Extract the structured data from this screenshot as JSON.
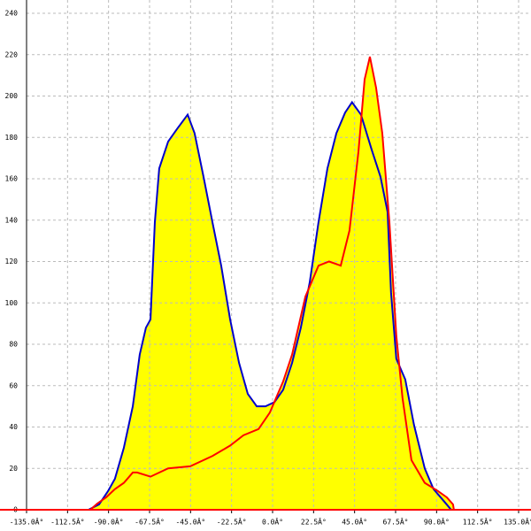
{
  "chart_data": {
    "type": "area",
    "xlim": [
      -135,
      135
    ],
    "ylim": [
      0,
      240
    ],
    "xticks": [
      {
        "value": -135,
        "label": "-135.0Â°"
      },
      {
        "value": -112.5,
        "label": "-112.5Â°"
      },
      {
        "value": -90,
        "label": "-90.0Â°"
      },
      {
        "value": -67.5,
        "label": "-67.5Â°"
      },
      {
        "value": -45,
        "label": "-45.0Â°"
      },
      {
        "value": -22.5,
        "label": "-22.5Â°"
      },
      {
        "value": 0,
        "label": "0.0Â°"
      },
      {
        "value": 22.5,
        "label": "22.5Â°"
      },
      {
        "value": 45,
        "label": "45.0Â°"
      },
      {
        "value": 67.5,
        "label": "67.5Â°"
      },
      {
        "value": 90,
        "label": "90.0Â°"
      },
      {
        "value": 112.5,
        "label": "112.5Â°"
      },
      {
        "value": 135,
        "label": "135.0Â°"
      }
    ],
    "yticks": [
      0,
      20,
      40,
      60,
      80,
      100,
      120,
      140,
      160,
      180,
      200,
      220,
      240
    ],
    "grid": true,
    "fill": "#ffff00",
    "baseline_color": "#ff0000",
    "series": [
      {
        "color": "#0000cc",
        "x": [
          -101,
          -95.2,
          -90.3,
          -86.5,
          -81.6,
          -76.7,
          -72.9,
          -69.5,
          -67,
          -64.6,
          -62.2,
          -57.3,
          -52.5,
          -46.6,
          -42.8,
          -37.9,
          -33,
          -28.2,
          -23.3,
          -18.4,
          -13.6,
          -8.7,
          -3.9,
          1,
          5.8,
          10.7,
          15.5,
          20.4,
          25.2,
          30.1,
          35,
          39.8,
          43.6,
          48.5,
          54.4,
          59.2,
          63.1,
          65,
          67.9,
          72.8,
          77.6,
          83.5,
          88.3,
          93.2,
          98
        ],
        "values": [
          0,
          2.6,
          9,
          15,
          30,
          50,
          75,
          88,
          92,
          139,
          165,
          178,
          184,
          191,
          182,
          161,
          139,
          118,
          92,
          71,
          56,
          50,
          50,
          52,
          58,
          71,
          88,
          110,
          139,
          165,
          182,
          192,
          197,
          191,
          174,
          161,
          144,
          105,
          73,
          63,
          41,
          20,
          10,
          5,
          0
        ]
      },
      {
        "color": "#ff0000",
        "x": [
          -100,
          -96.2,
          -91.3,
          -86.5,
          -81.6,
          -76.7,
          -74.3,
          -67,
          -57.3,
          -45.2,
          -33,
          -23.3,
          -16,
          -7.7,
          -1.5,
          5.8,
          10.7,
          18,
          25.2,
          31,
          37.4,
          42.2,
          47.1,
          50.5,
          53.4,
          56.8,
          60.2,
          64.1,
          67.9,
          71.3,
          76.2,
          83.5,
          90.8,
          95.6,
          99,
          99.5
        ],
        "values": [
          0,
          3,
          6,
          10,
          13,
          18,
          18,
          16,
          20,
          21,
          26,
          31,
          36,
          39,
          47,
          62,
          75,
          103,
          118,
          120,
          118,
          135,
          173,
          208,
          219,
          204,
          182,
          139,
          84,
          54,
          24,
          13,
          9,
          6,
          2.6,
          0
        ]
      }
    ]
  }
}
